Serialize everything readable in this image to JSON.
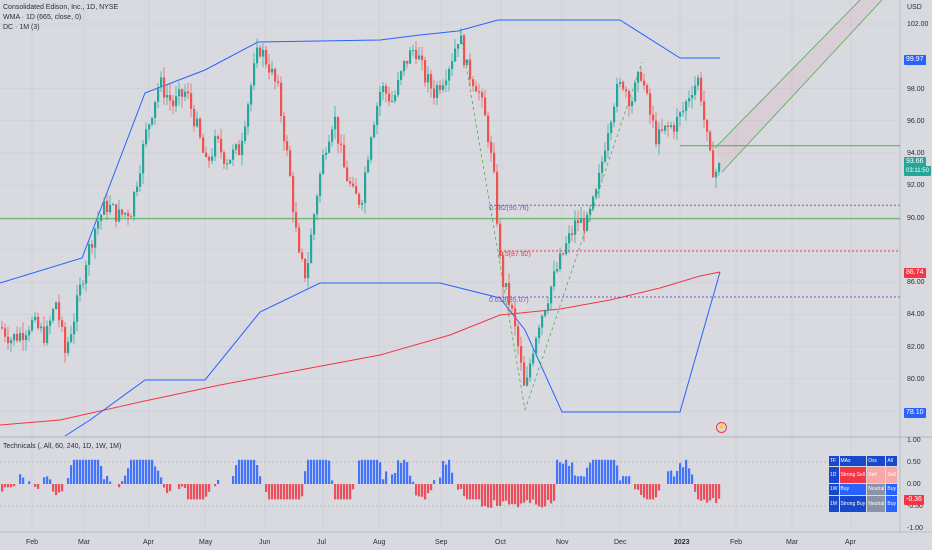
{
  "legend": {
    "title": "Consolidated Edison, Inc., 1D, NYSE",
    "wma": "WMA · 1D (665, close, 0)",
    "dc": "DC · 1M (3)",
    "technicals": "Technicals (, All, 60, 240, 1D, 1W, 1M)"
  },
  "price_axis": {
    "currency": "USD",
    "ticks": [
      "102.00",
      "98.00",
      "96.00",
      "94.00",
      "92.00",
      "90.00",
      "86.00",
      "84.00",
      "82.00",
      "80.00",
      "78.00"
    ],
    "tags": {
      "dc_upper": "99.97",
      "last": "93.66",
      "countdown": "03:11:50",
      "wma": "86.74",
      "dc_lower": "78.10"
    }
  },
  "osc_axis": {
    "ticks": [
      "1.00",
      "0.50",
      "0.00",
      "-0.50",
      "-1.00"
    ],
    "tags": {
      "current": "-0.36"
    }
  },
  "time_axis": {
    "labels": [
      "Feb",
      "Mar",
      "Apr",
      "May",
      "Jun",
      "Jul",
      "Aug",
      "Sep",
      "Oct",
      "Nov",
      "Dec",
      "2023",
      "Feb",
      "Mar",
      "Apr"
    ]
  },
  "fib_labels": {
    "f0382": "0.382(90.76)",
    "f05": "0.5(87.92)",
    "f0618": "0.618(85.07)"
  },
  "technicals_table": {
    "headers": [
      "TF",
      "MAs",
      "Osc",
      "All"
    ],
    "rows": [
      {
        "tf": "1D",
        "mas": "Strong Sell",
        "osc": "Sell",
        "all": "Sell"
      },
      {
        "tf": "1W",
        "mas": "Buy",
        "osc": "Neutral",
        "all": "Buy"
      },
      {
        "tf": "1M",
        "mas": "Strong Buy",
        "osc": "Neutral",
        "all": "Buy"
      }
    ]
  },
  "colors": {
    "background": "#d8dae0",
    "up": "#26a69a",
    "down": "#ef5350",
    "donchian": "#2962ff",
    "wma": "#f23645",
    "fib_0382": "#7e57c2",
    "fib_05": "#f23645",
    "fib_0618": "#7e57c2",
    "green_line": "#4caf50",
    "histogram_up": "#2962ff",
    "histogram_down": "#f23645"
  }
}
